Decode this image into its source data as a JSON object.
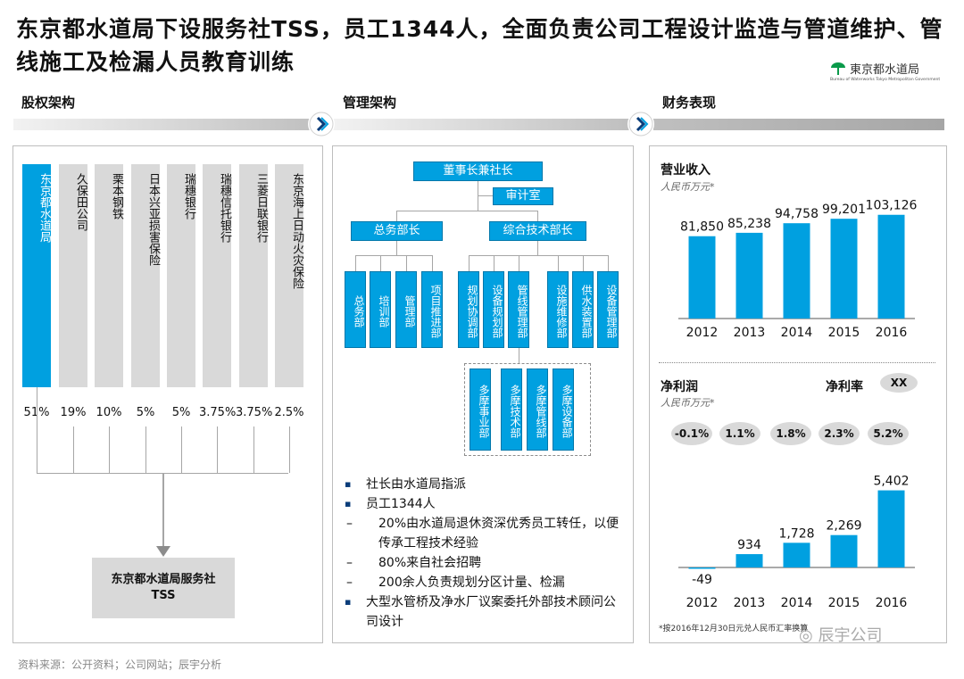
{
  "title": "东京都水道局下设服务社TSS，员工1344人，全面负责公司工程设计监造与管道维护、管线施工及检漏人员教育训练",
  "logo": {
    "text": "東京都水道局",
    "sub": "Bureau of Waterworks Tokyo Metropolitan Government"
  },
  "sections": {
    "ownership": "股权架构",
    "management": "管理架构",
    "finance": "财务表现"
  },
  "colors": {
    "accent": "#00a0e0",
    "gray": "#d9d9d9",
    "navy": "#0a3d7a"
  },
  "ownership": {
    "holders": [
      {
        "name": "东京都水道局",
        "pct": "51%"
      },
      {
        "name": "久保田公司",
        "pct": "19%"
      },
      {
        "name": "栗本钢铁",
        "pct": "10%"
      },
      {
        "name": "日本兴亚损害保险",
        "pct": "5%"
      },
      {
        "name": "瑞穗银行",
        "pct": "5%"
      },
      {
        "name": "瑞穗信托银行",
        "pct": "3.75%"
      },
      {
        "name": "三菱日联银行",
        "pct": "3.75%"
      },
      {
        "name": "东京海上日动火灾保险",
        "pct": "2.5%"
      }
    ],
    "target_line1": "东京都水道局服务社",
    "target_line2": "TSS"
  },
  "management": {
    "chairman": "董事长兼社长",
    "audit": "审计室",
    "general_head": "总务部长",
    "tech_head": "综合技术部长",
    "general_depts": [
      "总务部",
      "培训部",
      "管理部",
      "项目推进部"
    ],
    "tech_depts": [
      "规划协调部",
      "设备规划部",
      "管线管理部",
      "设施维修部",
      "供水装置部",
      "设备管理部"
    ],
    "tama_depts": [
      "多摩事业部",
      "多摩技术部",
      "多摩管线部",
      "多摩设备部"
    ],
    "bullets": [
      {
        "type": "b",
        "text": "社长由水道局指派"
      },
      {
        "type": "b",
        "text": "员工1344人"
      },
      {
        "type": "d",
        "text": "20%由水道局退休资深优秀员工转任，以便传承工程技术经验"
      },
      {
        "type": "d",
        "text": "80%来自社会招聘"
      },
      {
        "type": "d",
        "text": "200余人负责规划分区计量、检漏"
      },
      {
        "type": "b",
        "text": "大型水管桥及净水厂议案委托外部技术顾问公司设计"
      }
    ]
  },
  "finance": {
    "revenue_title": "营业收入",
    "revenue_unit": "人民币万元*",
    "profit_title": "净利润",
    "profit_unit": "人民币万元*",
    "margin_title": "净利率",
    "margin_badge": "XX",
    "margins": [
      "-0.1%",
      "1.1%",
      "1.8%",
      "2.3%",
      "5.2%"
    ],
    "footnote": "*按2016年12月30日元兑人民币汇率换算",
    "watermark": "辰宇公司"
  },
  "chart_data": [
    {
      "type": "bar",
      "title": "营业收入",
      "ylabel": "人民币万元*",
      "categories": [
        "2012",
        "2013",
        "2014",
        "2015",
        "2016"
      ],
      "values": [
        81850,
        85238,
        94758,
        99201,
        103126
      ],
      "labels": [
        "81,850",
        "85,238",
        "94,758",
        "99,201",
        "103,126"
      ],
      "ylim": [
        0,
        110000
      ]
    },
    {
      "type": "bar",
      "title": "净利润",
      "ylabel": "人民币万元*",
      "categories": [
        "2012",
        "2013",
        "2014",
        "2015",
        "2016"
      ],
      "values": [
        -49,
        934,
        1728,
        2269,
        5402
      ],
      "labels": [
        "-49",
        "934",
        "1,728",
        "2,269",
        "5,402"
      ],
      "ylim": [
        -100,
        6000
      ]
    }
  ],
  "source": "资料来源：公开资料；公司网站；辰宇分析"
}
